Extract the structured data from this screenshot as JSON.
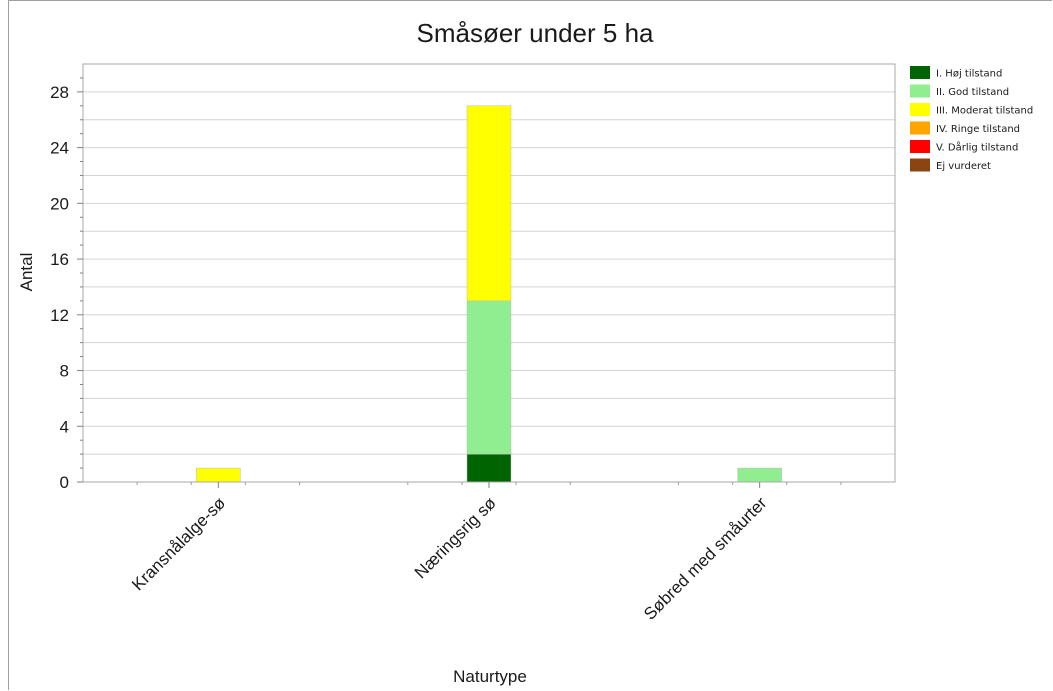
{
  "chart_data": {
    "type": "bar",
    "stacked": true,
    "title": "Småsøer under 5 ha",
    "xlabel": "Naturtype",
    "ylabel": "Antal",
    "ylim": [
      0,
      30
    ],
    "yticks": [
      0,
      4,
      8,
      12,
      16,
      20,
      24,
      28
    ],
    "grid": true,
    "legend_position": "top-right",
    "categories": [
      "Kransnålalge-sø",
      "Næringsrig sø",
      "Søbred med småurter"
    ],
    "series": [
      {
        "name": "I. Høj tilstand",
        "color": "#006400",
        "values": [
          0,
          2,
          0
        ]
      },
      {
        "name": "II. God tilstand",
        "color": "#90EE90",
        "values": [
          0,
          11,
          1
        ]
      },
      {
        "name": "III. Moderat tilstand",
        "color": "#FFFF00",
        "values": [
          1,
          14,
          0
        ]
      },
      {
        "name": "IV. Ringe tilstand",
        "color": "#FFA500",
        "values": [
          0,
          0,
          0
        ]
      },
      {
        "name": "V. Dårlig tilstand",
        "color": "#FF0000",
        "values": [
          0,
          0,
          0
        ]
      },
      {
        "name": "Ej vurderet",
        "color": "#8B4513",
        "values": [
          0,
          0,
          0
        ]
      }
    ]
  }
}
